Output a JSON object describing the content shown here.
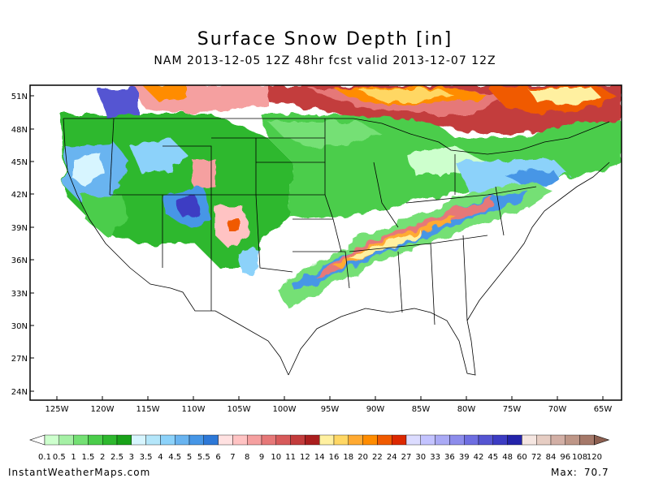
{
  "header": {
    "title": "Surface Snow Depth [in]",
    "subtitle": "NAM 2013-12-05 12Z 48hr fcst valid 2013-12-07 12Z"
  },
  "axes": {
    "lat_labels": [
      "51N",
      "48N",
      "45N",
      "42N",
      "39N",
      "36N",
      "33N",
      "30N",
      "27N",
      "24N"
    ],
    "lon_labels": [
      "125W",
      "120W",
      "115W",
      "110W",
      "105W",
      "100W",
      "95W",
      "90W",
      "85W",
      "80W",
      "75W",
      "70W",
      "65W"
    ]
  },
  "legend": {
    "labels": [
      "0.1",
      "0.5",
      "1",
      "1.5",
      "2",
      "2.5",
      "3",
      "3.5",
      "4",
      "4.5",
      "5",
      "5.5",
      "6",
      "7",
      "8",
      "9",
      "10",
      "11",
      "12",
      "14",
      "16",
      "18",
      "20",
      "22",
      "24",
      "27",
      "30",
      "33",
      "36",
      "39",
      "42",
      "45",
      "48",
      "60",
      "72",
      "84",
      "96",
      "108",
      "120"
    ],
    "colors": [
      "#ffffff",
      "#cdffcd",
      "#a5f0a5",
      "#74e074",
      "#4bcd4b",
      "#2eb82e",
      "#19a219",
      "#d7f5ff",
      "#b4e6fa",
      "#8cd2fa",
      "#69b4f0",
      "#4696e6",
      "#2d78d7",
      "#ffe1e1",
      "#ffc3c3",
      "#f5a0a0",
      "#e67878",
      "#d75a5a",
      "#c33c3c",
      "#aa1e1e",
      "#fff0a0",
      "#ffd764",
      "#ffaa32",
      "#ff8c00",
      "#f05a00",
      "#dc2800",
      "#dcdcff",
      "#c3c3ff",
      "#aaaaf5",
      "#8c8ceb",
      "#6e6ee1",
      "#5555d2",
      "#3c3cc3",
      "#2323aa",
      "#f5e6e1",
      "#e6cdc3",
      "#d2afa5",
      "#be9687",
      "#a57869",
      "#8c5f50"
    ]
  },
  "footer": {
    "site": "InstantWeatherMaps.com",
    "max_label": "Max:",
    "max_value": "70.7"
  }
}
